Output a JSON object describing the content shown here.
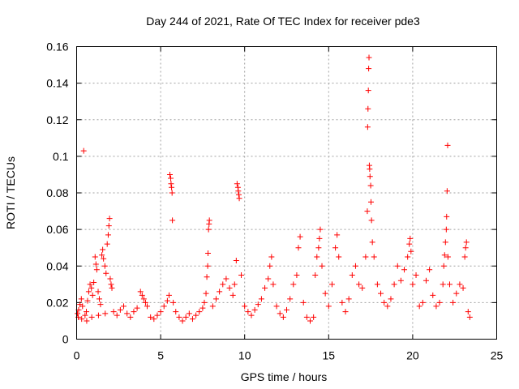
{
  "chart_data": {
    "type": "scatter",
    "title": "Day 244 of 2021, Rate Of TEC Index for receiver pde3",
    "xlabel": "GPS time / hours",
    "ylabel": "ROTI / TECUs",
    "xlim": [
      0,
      25
    ],
    "ylim": [
      0,
      0.16
    ],
    "x_ticks": [
      0,
      5,
      10,
      15,
      20,
      25
    ],
    "x_tick_labels": [
      "0",
      "5",
      "10",
      "15",
      "20",
      "25"
    ],
    "y_ticks": [
      0,
      0.02,
      0.04,
      0.06,
      0.08,
      0.1,
      0.12,
      0.14,
      0.16
    ],
    "y_tick_labels": [
      "0",
      "0.02",
      "0.04",
      "0.06",
      "0.08",
      "0.1",
      "0.12",
      "0.14",
      "0.16"
    ],
    "grid": true,
    "marker": "+",
    "color": "#ff0000",
    "series": [
      {
        "points": [
          [
            0.05,
            0.014
          ],
          [
            0.12,
            0.016
          ],
          [
            0.2,
            0.019
          ],
          [
            0.28,
            0.022
          ],
          [
            0.35,
            0.018
          ],
          [
            0.42,
            0.103
          ],
          [
            0.5,
            0.013
          ],
          [
            0.58,
            0.015
          ],
          [
            0.65,
            0.021
          ],
          [
            0.72,
            0.026
          ],
          [
            0.8,
            0.03
          ],
          [
            0.88,
            0.028
          ],
          [
            0.95,
            0.024
          ],
          [
            1.02,
            0.031
          ],
          [
            1.1,
            0.045
          ],
          [
            1.15,
            0.041
          ],
          [
            1.2,
            0.038
          ],
          [
            1.28,
            0.026
          ],
          [
            1.35,
            0.022
          ],
          [
            1.42,
            0.019
          ],
          [
            1.5,
            0.046
          ],
          [
            1.55,
            0.049
          ],
          [
            1.6,
            0.044
          ],
          [
            1.68,
            0.04
          ],
          [
            1.75,
            0.036
          ],
          [
            1.82,
            0.052
          ],
          [
            1.88,
            0.057
          ],
          [
            1.92,
            0.062
          ],
          [
            1.96,
            0.066
          ],
          [
            2.0,
            0.033
          ],
          [
            2.05,
            0.03
          ],
          [
            2.1,
            0.028
          ],
          [
            0.1,
            0.012
          ],
          [
            0.3,
            0.011
          ],
          [
            0.6,
            0.01
          ],
          [
            0.9,
            0.012
          ],
          [
            1.3,
            0.013
          ],
          [
            1.7,
            0.014
          ],
          [
            2.2,
            0.015
          ],
          [
            2.4,
            0.013
          ],
          [
            2.6,
            0.016
          ],
          [
            2.8,
            0.018
          ],
          [
            3.0,
            0.014
          ],
          [
            3.2,
            0.012
          ],
          [
            3.4,
            0.015
          ],
          [
            3.6,
            0.017
          ],
          [
            3.8,
            0.026
          ],
          [
            3.9,
            0.024
          ],
          [
            4.0,
            0.022
          ],
          [
            4.1,
            0.02
          ],
          [
            4.2,
            0.018
          ],
          [
            4.4,
            0.012
          ],
          [
            4.6,
            0.011
          ],
          [
            4.8,
            0.013
          ],
          [
            5.0,
            0.015
          ],
          [
            5.2,
            0.018
          ],
          [
            5.4,
            0.021
          ],
          [
            5.5,
            0.024
          ],
          [
            5.55,
            0.09
          ],
          [
            5.6,
            0.088
          ],
          [
            5.62,
            0.085
          ],
          [
            5.65,
            0.083
          ],
          [
            5.68,
            0.08
          ],
          [
            5.7,
            0.065
          ],
          [
            5.75,
            0.02
          ],
          [
            5.9,
            0.015
          ],
          [
            6.1,
            0.012
          ],
          [
            6.3,
            0.01
          ],
          [
            6.5,
            0.012
          ],
          [
            6.7,
            0.014
          ],
          [
            6.9,
            0.011
          ],
          [
            7.1,
            0.013
          ],
          [
            7.3,
            0.015
          ],
          [
            7.5,
            0.017
          ],
          [
            7.6,
            0.02
          ],
          [
            7.7,
            0.025
          ],
          [
            7.75,
            0.034
          ],
          [
            7.8,
            0.04
          ],
          [
            7.82,
            0.047
          ],
          [
            7.85,
            0.06
          ],
          [
            7.88,
            0.063
          ],
          [
            7.9,
            0.065
          ],
          [
            8.1,
            0.018
          ],
          [
            8.3,
            0.022
          ],
          [
            8.5,
            0.026
          ],
          [
            8.7,
            0.03
          ],
          [
            8.9,
            0.033
          ],
          [
            9.1,
            0.028
          ],
          [
            9.3,
            0.024
          ],
          [
            9.4,
            0.03
          ],
          [
            9.5,
            0.043
          ],
          [
            9.55,
            0.085
          ],
          [
            9.6,
            0.083
          ],
          [
            9.62,
            0.081
          ],
          [
            9.65,
            0.079
          ],
          [
            9.68,
            0.077
          ],
          [
            9.8,
            0.035
          ],
          [
            10.0,
            0.018
          ],
          [
            10.2,
            0.015
          ],
          [
            10.4,
            0.013
          ],
          [
            10.6,
            0.016
          ],
          [
            10.8,
            0.019
          ],
          [
            11.0,
            0.022
          ],
          [
            11.2,
            0.028
          ],
          [
            11.4,
            0.033
          ],
          [
            11.5,
            0.04
          ],
          [
            11.6,
            0.045
          ],
          [
            11.7,
            0.03
          ],
          [
            11.9,
            0.018
          ],
          [
            12.1,
            0.014
          ],
          [
            12.3,
            0.012
          ],
          [
            12.5,
            0.016
          ],
          [
            12.7,
            0.022
          ],
          [
            12.9,
            0.03
          ],
          [
            13.1,
            0.035
          ],
          [
            13.2,
            0.05
          ],
          [
            13.3,
            0.056
          ],
          [
            13.5,
            0.02
          ],
          [
            13.7,
            0.012
          ],
          [
            13.9,
            0.01
          ],
          [
            14.1,
            0.012
          ],
          [
            14.2,
            0.035
          ],
          [
            14.3,
            0.045
          ],
          [
            14.4,
            0.05
          ],
          [
            14.45,
            0.055
          ],
          [
            14.5,
            0.06
          ],
          [
            14.6,
            0.04
          ],
          [
            14.8,
            0.025
          ],
          [
            15.0,
            0.018
          ],
          [
            15.2,
            0.03
          ],
          [
            15.4,
            0.05
          ],
          [
            15.5,
            0.057
          ],
          [
            15.6,
            0.045
          ],
          [
            15.8,
            0.02
          ],
          [
            16.0,
            0.015
          ],
          [
            16.2,
            0.022
          ],
          [
            16.4,
            0.035
          ],
          [
            16.6,
            0.04
          ],
          [
            16.8,
            0.03
          ],
          [
            17.0,
            0.028
          ],
          [
            17.2,
            0.045
          ],
          [
            17.3,
            0.07
          ],
          [
            17.32,
            0.116
          ],
          [
            17.34,
            0.126
          ],
          [
            17.36,
            0.136
          ],
          [
            17.38,
            0.148
          ],
          [
            17.4,
            0.154
          ],
          [
            17.42,
            0.095
          ],
          [
            17.44,
            0.093
          ],
          [
            17.46,
            0.089
          ],
          [
            17.5,
            0.084
          ],
          [
            17.52,
            0.075
          ],
          [
            17.55,
            0.065
          ],
          [
            17.6,
            0.053
          ],
          [
            17.7,
            0.045
          ],
          [
            17.9,
            0.03
          ],
          [
            18.1,
            0.025
          ],
          [
            18.3,
            0.02
          ],
          [
            18.5,
            0.018
          ],
          [
            18.7,
            0.022
          ],
          [
            18.9,
            0.03
          ],
          [
            19.1,
            0.04
          ],
          [
            19.3,
            0.032
          ],
          [
            19.5,
            0.038
          ],
          [
            19.7,
            0.045
          ],
          [
            19.8,
            0.052
          ],
          [
            19.85,
            0.055
          ],
          [
            19.9,
            0.048
          ],
          [
            20.0,
            0.03
          ],
          [
            20.2,
            0.035
          ],
          [
            20.4,
            0.018
          ],
          [
            20.6,
            0.02
          ],
          [
            20.8,
            0.032
          ],
          [
            21.0,
            0.038
          ],
          [
            21.2,
            0.024
          ],
          [
            21.4,
            0.018
          ],
          [
            21.6,
            0.02
          ],
          [
            21.8,
            0.03
          ],
          [
            21.85,
            0.04
          ],
          [
            21.9,
            0.046
          ],
          [
            21.95,
            0.053
          ],
          [
            22.0,
            0.06
          ],
          [
            22.02,
            0.067
          ],
          [
            22.05,
            0.081
          ],
          [
            22.08,
            0.106
          ],
          [
            22.1,
            0.045
          ],
          [
            22.2,
            0.03
          ],
          [
            22.4,
            0.02
          ],
          [
            22.6,
            0.025
          ],
          [
            22.8,
            0.03
          ],
          [
            23.0,
            0.028
          ],
          [
            23.1,
            0.045
          ],
          [
            23.15,
            0.05
          ],
          [
            23.2,
            0.053
          ],
          [
            23.3,
            0.015
          ],
          [
            23.4,
            0.012
          ]
        ]
      }
    ]
  }
}
